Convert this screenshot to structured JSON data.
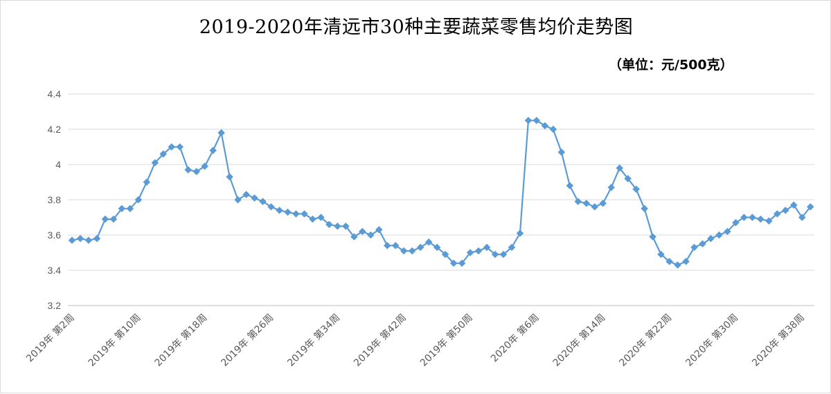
{
  "chart_data": {
    "type": "line",
    "title": "2019-2020年清远市30种主要蔬菜零售均价走势图",
    "subtitle": "（单位：元/500克）",
    "ylim": [
      3.2,
      4.4
    ],
    "yticks": [
      "3.2",
      "3.4",
      "3.6",
      "3.8",
      "4",
      "4.2",
      "4.4"
    ],
    "grid": true,
    "x_tick_labels": [
      "2019年 第2周",
      "2019年 第10周",
      "2019年 第18周",
      "2019年 第26周",
      "2019年 第34周",
      "2019年 第42周",
      "2019年 第50周",
      "2020年 第6周",
      "2020年 第14周",
      "2020年 第22周",
      "2020年 第30周",
      "2020年 第38周"
    ],
    "x_tick_indices": [
      0,
      8,
      16,
      24,
      32,
      40,
      48,
      56,
      64,
      72,
      80,
      88
    ],
    "color": "#5b9bd5",
    "values": [
      3.57,
      3.58,
      3.57,
      3.58,
      3.69,
      3.69,
      3.75,
      3.75,
      3.8,
      3.9,
      4.01,
      4.06,
      4.1,
      4.1,
      3.97,
      3.96,
      3.99,
      4.08,
      4.18,
      3.93,
      3.8,
      3.83,
      3.81,
      3.79,
      3.76,
      3.74,
      3.73,
      3.72,
      3.72,
      3.69,
      3.7,
      3.66,
      3.65,
      3.65,
      3.59,
      3.62,
      3.6,
      3.63,
      3.54,
      3.54,
      3.51,
      3.51,
      3.53,
      3.56,
      3.53,
      3.49,
      3.44,
      3.44,
      3.5,
      3.51,
      3.53,
      3.49,
      3.49,
      3.53,
      3.61,
      4.25,
      4.25,
      4.22,
      4.2,
      4.07,
      3.88,
      3.79,
      3.78,
      3.76,
      3.78,
      3.87,
      3.98,
      3.92,
      3.86,
      3.75,
      3.59,
      3.49,
      3.45,
      3.43,
      3.45,
      3.53,
      3.55,
      3.58,
      3.6,
      3.62,
      3.67,
      3.7,
      3.7,
      3.69,
      3.68,
      3.72,
      3.74,
      3.77,
      3.7,
      3.76
    ]
  }
}
